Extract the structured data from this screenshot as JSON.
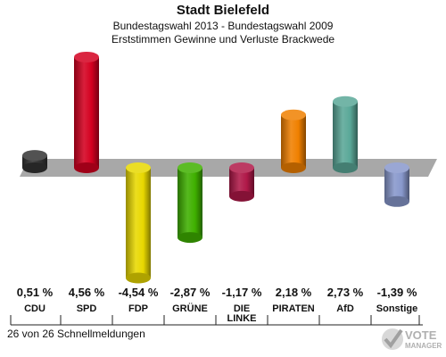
{
  "header": {
    "title": "Stadt Bielefeld",
    "subtitle": "Bundestagswahl 2013 - Bundestagswahl 2009",
    "subtitle2": "Erststimmen Gewinne und Verluste Brackwede"
  },
  "footer": {
    "note": "26 von 26 Schnellmeldungen"
  },
  "logo": {
    "text_top": "VOTE",
    "text_bottom": "MANAGER"
  },
  "chart_data": {
    "type": "bar",
    "categories": [
      "CDU",
      "SPD",
      "FDP",
      "GRÜNE",
      "DIE LINKE",
      "PIRATEN",
      "AfD",
      "Sonstige"
    ],
    "values": [
      0.51,
      4.56,
      -4.54,
      -2.87,
      -1.17,
      2.18,
      2.73,
      -1.39
    ],
    "value_labels": [
      "0,51 %",
      "4,56 %",
      "-4,54 %",
      "-2,87 %",
      "-1,17 %",
      "2,18 %",
      "2,73 %",
      "-1,39 %"
    ],
    "colors": [
      "#333333",
      "#d40020",
      "#e8d800",
      "#3fb000",
      "#b01848",
      "#f08000",
      "#5aa898",
      "#8898cc"
    ],
    "ylim": [
      -4.54,
      4.56
    ]
  }
}
